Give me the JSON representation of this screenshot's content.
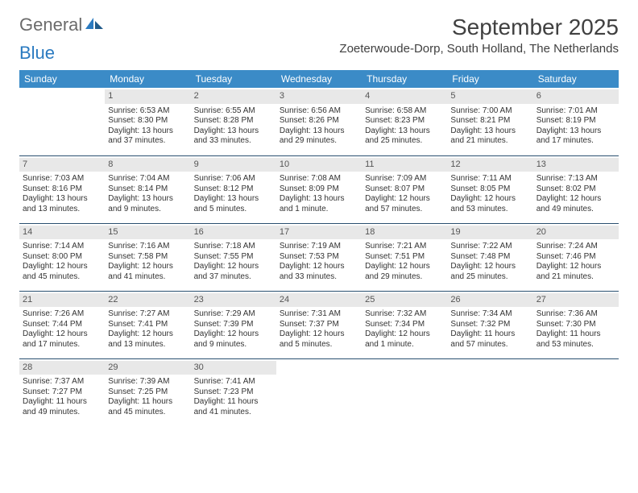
{
  "logo": {
    "part1": "General",
    "part2": "Blue"
  },
  "title": "September 2025",
  "location": "Zoeterwoude-Dorp, South Holland, The Netherlands",
  "colors": {
    "header_bg": "#3b8bc7",
    "header_text": "#ffffff",
    "daynum_bg": "#e8e8e8",
    "border": "#2a5070",
    "logo_gray": "#6b6b6b",
    "logo_blue": "#2a7ac0"
  },
  "weekdays": [
    "Sunday",
    "Monday",
    "Tuesday",
    "Wednesday",
    "Thursday",
    "Friday",
    "Saturday"
  ],
  "weeks": [
    [
      null,
      {
        "day": "1",
        "sunrise": "Sunrise: 6:53 AM",
        "sunset": "Sunset: 8:30 PM",
        "daylight": "Daylight: 13 hours and 37 minutes."
      },
      {
        "day": "2",
        "sunrise": "Sunrise: 6:55 AM",
        "sunset": "Sunset: 8:28 PM",
        "daylight": "Daylight: 13 hours and 33 minutes."
      },
      {
        "day": "3",
        "sunrise": "Sunrise: 6:56 AM",
        "sunset": "Sunset: 8:26 PM",
        "daylight": "Daylight: 13 hours and 29 minutes."
      },
      {
        "day": "4",
        "sunrise": "Sunrise: 6:58 AM",
        "sunset": "Sunset: 8:23 PM",
        "daylight": "Daylight: 13 hours and 25 minutes."
      },
      {
        "day": "5",
        "sunrise": "Sunrise: 7:00 AM",
        "sunset": "Sunset: 8:21 PM",
        "daylight": "Daylight: 13 hours and 21 minutes."
      },
      {
        "day": "6",
        "sunrise": "Sunrise: 7:01 AM",
        "sunset": "Sunset: 8:19 PM",
        "daylight": "Daylight: 13 hours and 17 minutes."
      }
    ],
    [
      {
        "day": "7",
        "sunrise": "Sunrise: 7:03 AM",
        "sunset": "Sunset: 8:16 PM",
        "daylight": "Daylight: 13 hours and 13 minutes."
      },
      {
        "day": "8",
        "sunrise": "Sunrise: 7:04 AM",
        "sunset": "Sunset: 8:14 PM",
        "daylight": "Daylight: 13 hours and 9 minutes."
      },
      {
        "day": "9",
        "sunrise": "Sunrise: 7:06 AM",
        "sunset": "Sunset: 8:12 PM",
        "daylight": "Daylight: 13 hours and 5 minutes."
      },
      {
        "day": "10",
        "sunrise": "Sunrise: 7:08 AM",
        "sunset": "Sunset: 8:09 PM",
        "daylight": "Daylight: 13 hours and 1 minute."
      },
      {
        "day": "11",
        "sunrise": "Sunrise: 7:09 AM",
        "sunset": "Sunset: 8:07 PM",
        "daylight": "Daylight: 12 hours and 57 minutes."
      },
      {
        "day": "12",
        "sunrise": "Sunrise: 7:11 AM",
        "sunset": "Sunset: 8:05 PM",
        "daylight": "Daylight: 12 hours and 53 minutes."
      },
      {
        "day": "13",
        "sunrise": "Sunrise: 7:13 AM",
        "sunset": "Sunset: 8:02 PM",
        "daylight": "Daylight: 12 hours and 49 minutes."
      }
    ],
    [
      {
        "day": "14",
        "sunrise": "Sunrise: 7:14 AM",
        "sunset": "Sunset: 8:00 PM",
        "daylight": "Daylight: 12 hours and 45 minutes."
      },
      {
        "day": "15",
        "sunrise": "Sunrise: 7:16 AM",
        "sunset": "Sunset: 7:58 PM",
        "daylight": "Daylight: 12 hours and 41 minutes."
      },
      {
        "day": "16",
        "sunrise": "Sunrise: 7:18 AM",
        "sunset": "Sunset: 7:55 PM",
        "daylight": "Daylight: 12 hours and 37 minutes."
      },
      {
        "day": "17",
        "sunrise": "Sunrise: 7:19 AM",
        "sunset": "Sunset: 7:53 PM",
        "daylight": "Daylight: 12 hours and 33 minutes."
      },
      {
        "day": "18",
        "sunrise": "Sunrise: 7:21 AM",
        "sunset": "Sunset: 7:51 PM",
        "daylight": "Daylight: 12 hours and 29 minutes."
      },
      {
        "day": "19",
        "sunrise": "Sunrise: 7:22 AM",
        "sunset": "Sunset: 7:48 PM",
        "daylight": "Daylight: 12 hours and 25 minutes."
      },
      {
        "day": "20",
        "sunrise": "Sunrise: 7:24 AM",
        "sunset": "Sunset: 7:46 PM",
        "daylight": "Daylight: 12 hours and 21 minutes."
      }
    ],
    [
      {
        "day": "21",
        "sunrise": "Sunrise: 7:26 AM",
        "sunset": "Sunset: 7:44 PM",
        "daylight": "Daylight: 12 hours and 17 minutes."
      },
      {
        "day": "22",
        "sunrise": "Sunrise: 7:27 AM",
        "sunset": "Sunset: 7:41 PM",
        "daylight": "Daylight: 12 hours and 13 minutes."
      },
      {
        "day": "23",
        "sunrise": "Sunrise: 7:29 AM",
        "sunset": "Sunset: 7:39 PM",
        "daylight": "Daylight: 12 hours and 9 minutes."
      },
      {
        "day": "24",
        "sunrise": "Sunrise: 7:31 AM",
        "sunset": "Sunset: 7:37 PM",
        "daylight": "Daylight: 12 hours and 5 minutes."
      },
      {
        "day": "25",
        "sunrise": "Sunrise: 7:32 AM",
        "sunset": "Sunset: 7:34 PM",
        "daylight": "Daylight: 12 hours and 1 minute."
      },
      {
        "day": "26",
        "sunrise": "Sunrise: 7:34 AM",
        "sunset": "Sunset: 7:32 PM",
        "daylight": "Daylight: 11 hours and 57 minutes."
      },
      {
        "day": "27",
        "sunrise": "Sunrise: 7:36 AM",
        "sunset": "Sunset: 7:30 PM",
        "daylight": "Daylight: 11 hours and 53 minutes."
      }
    ],
    [
      {
        "day": "28",
        "sunrise": "Sunrise: 7:37 AM",
        "sunset": "Sunset: 7:27 PM",
        "daylight": "Daylight: 11 hours and 49 minutes."
      },
      {
        "day": "29",
        "sunrise": "Sunrise: 7:39 AM",
        "sunset": "Sunset: 7:25 PM",
        "daylight": "Daylight: 11 hours and 45 minutes."
      },
      {
        "day": "30",
        "sunrise": "Sunrise: 7:41 AM",
        "sunset": "Sunset: 7:23 PM",
        "daylight": "Daylight: 11 hours and 41 minutes."
      },
      null,
      null,
      null,
      null
    ]
  ]
}
